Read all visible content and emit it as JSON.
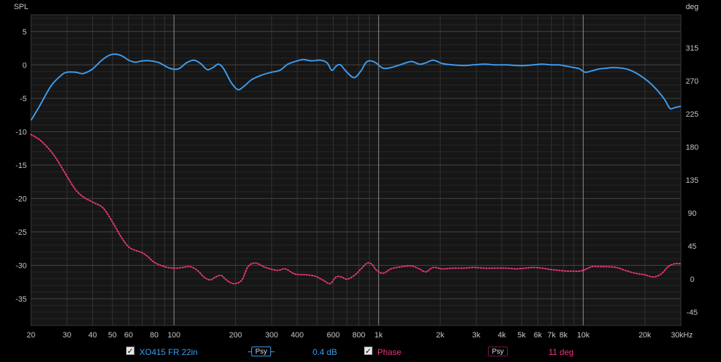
{
  "chart_data": {
    "type": "line",
    "left_axis_label": "SPL",
    "right_axis_label": "deg",
    "x_scale": "log",
    "xlim": [
      20,
      30000
    ],
    "ylim_spl": [
      -39,
      7.5
    ],
    "ylim_phase": [
      -63,
      360
    ],
    "x_ticks": [
      {
        "v": 20,
        "l": "20"
      },
      {
        "v": 30,
        "l": "30"
      },
      {
        "v": 40,
        "l": "40"
      },
      {
        "v": 50,
        "l": "50"
      },
      {
        "v": 60,
        "l": "60"
      },
      {
        "v": 80,
        "l": "80"
      },
      {
        "v": 100,
        "l": "100"
      },
      {
        "v": 200,
        "l": "200"
      },
      {
        "v": 300,
        "l": "300"
      },
      {
        "v": 400,
        "l": "400"
      },
      {
        "v": 600,
        "l": "600"
      },
      {
        "v": 800,
        "l": "800"
      },
      {
        "v": 1000,
        "l": "1k"
      },
      {
        "v": 2000,
        "l": "2k"
      },
      {
        "v": 3000,
        "l": "3k"
      },
      {
        "v": 4000,
        "l": "4k"
      },
      {
        "v": 5000,
        "l": "5k"
      },
      {
        "v": 6000,
        "l": "6k"
      },
      {
        "v": 7000,
        "l": "7k"
      },
      {
        "v": 8000,
        "l": "8k"
      },
      {
        "v": 10000,
        "l": "10k"
      },
      {
        "v": 20000,
        "l": "20k"
      },
      {
        "v": 30000,
        "l": "30kHz"
      }
    ],
    "y_ticks_left": [
      5,
      0,
      -5,
      -10,
      -15,
      -20,
      -25,
      -30,
      -35
    ],
    "y_ticks_right": [
      315,
      270,
      225,
      180,
      135,
      90,
      45,
      0,
      -45
    ],
    "grid": true,
    "series": [
      {
        "name": "XO415 FR 22in",
        "axis": "left",
        "color": "#3d9cf0",
        "style": "solid",
        "points": [
          [
            20,
            -8.3
          ],
          [
            22,
            -6.2
          ],
          [
            25,
            -3.2
          ],
          [
            28,
            -1.6
          ],
          [
            30,
            -1.1
          ],
          [
            33,
            -1.1
          ],
          [
            36,
            -1.3
          ],
          [
            40,
            -0.6
          ],
          [
            44,
            0.6
          ],
          [
            48,
            1.4
          ],
          [
            52,
            1.6
          ],
          [
            56,
            1.3
          ],
          [
            60,
            0.7
          ],
          [
            65,
            0.4
          ],
          [
            70,
            0.6
          ],
          [
            77,
            0.6
          ],
          [
            85,
            0.3
          ],
          [
            95,
            -0.5
          ],
          [
            105,
            -0.6
          ],
          [
            115,
            0.3
          ],
          [
            125,
            0.7
          ],
          [
            135,
            0.2
          ],
          [
            145,
            -0.7
          ],
          [
            155,
            -0.4
          ],
          [
            165,
            0.1
          ],
          [
            175,
            -0.6
          ],
          [
            190,
            -2.6
          ],
          [
            205,
            -3.7
          ],
          [
            220,
            -3.2
          ],
          [
            240,
            -2.2
          ],
          [
            270,
            -1.5
          ],
          [
            300,
            -1.1
          ],
          [
            330,
            -0.8
          ],
          [
            360,
            0.1
          ],
          [
            400,
            0.6
          ],
          [
            430,
            0.8
          ],
          [
            470,
            0.6
          ],
          [
            520,
            0.7
          ],
          [
            560,
            0.3
          ],
          [
            590,
            -0.8
          ],
          [
            620,
            -0.2
          ],
          [
            650,
            0.0
          ],
          [
            700,
            -1.1
          ],
          [
            760,
            -1.9
          ],
          [
            820,
            -0.9
          ],
          [
            870,
            0.4
          ],
          [
            920,
            0.6
          ],
          [
            970,
            0.3
          ],
          [
            1050,
            -0.5
          ],
          [
            1150,
            -0.4
          ],
          [
            1300,
            0.1
          ],
          [
            1450,
            0.5
          ],
          [
            1580,
            0.1
          ],
          [
            1700,
            0.3
          ],
          [
            1850,
            0.7
          ],
          [
            2050,
            0.2
          ],
          [
            2300,
            0.0
          ],
          [
            2600,
            -0.1
          ],
          [
            2900,
            0.0
          ],
          [
            3300,
            0.1
          ],
          [
            3700,
            0.0
          ],
          [
            4200,
            0.0
          ],
          [
            4700,
            -0.1
          ],
          [
            5200,
            -0.1
          ],
          [
            5700,
            0.0
          ],
          [
            6300,
            0.1
          ],
          [
            7000,
            0.0
          ],
          [
            7600,
            0.0
          ],
          [
            8300,
            -0.2
          ],
          [
            9000,
            -0.4
          ],
          [
            9600,
            -0.6
          ],
          [
            10200,
            -1.1
          ],
          [
            11000,
            -0.9
          ],
          [
            12000,
            -0.6
          ],
          [
            13000,
            -0.5
          ],
          [
            14000,
            -0.4
          ],
          [
            15500,
            -0.5
          ],
          [
            17000,
            -0.8
          ],
          [
            19000,
            -1.6
          ],
          [
            21000,
            -2.6
          ],
          [
            23000,
            -3.8
          ],
          [
            25000,
            -5.2
          ],
          [
            26500,
            -6.5
          ],
          [
            28000,
            -6.4
          ],
          [
            30000,
            -6.2
          ]
        ]
      },
      {
        "name": "Phase",
        "axis": "right",
        "color": "#e8357f",
        "style": "dotted",
        "points": [
          [
            20,
            197
          ],
          [
            22,
            190
          ],
          [
            24,
            180
          ],
          [
            26,
            168
          ],
          [
            28,
            154
          ],
          [
            30,
            140
          ],
          [
            33,
            122
          ],
          [
            36,
            112
          ],
          [
            40,
            105
          ],
          [
            45,
            97
          ],
          [
            50,
            78
          ],
          [
            55,
            58
          ],
          [
            60,
            44
          ],
          [
            65,
            39
          ],
          [
            70,
            36
          ],
          [
            75,
            30
          ],
          [
            80,
            23
          ],
          [
            90,
            17
          ],
          [
            100,
            15
          ],
          [
            110,
            16
          ],
          [
            120,
            17
          ],
          [
            130,
            12
          ],
          [
            140,
            3
          ],
          [
            150,
            -1
          ],
          [
            160,
            3
          ],
          [
            170,
            5
          ],
          [
            180,
            -1
          ],
          [
            190,
            -5
          ],
          [
            200,
            -6
          ],
          [
            215,
            -1
          ],
          [
            230,
            17
          ],
          [
            250,
            22
          ],
          [
            280,
            16
          ],
          [
            320,
            12
          ],
          [
            350,
            14
          ],
          [
            390,
            7
          ],
          [
            440,
            6
          ],
          [
            490,
            4
          ],
          [
            540,
            -2
          ],
          [
            580,
            -6
          ],
          [
            620,
            3
          ],
          [
            660,
            3
          ],
          [
            700,
            0
          ],
          [
            760,
            5
          ],
          [
            820,
            14
          ],
          [
            880,
            22
          ],
          [
            930,
            20
          ],
          [
            970,
            13
          ],
          [
            1050,
            8
          ],
          [
            1150,
            14
          ],
          [
            1300,
            17
          ],
          [
            1450,
            18
          ],
          [
            1580,
            14
          ],
          [
            1700,
            10
          ],
          [
            1850,
            16
          ],
          [
            2050,
            14
          ],
          [
            2300,
            15
          ],
          [
            2600,
            15
          ],
          [
            2900,
            16
          ],
          [
            3300,
            15
          ],
          [
            3700,
            15
          ],
          [
            4200,
            15
          ],
          [
            4700,
            14
          ],
          [
            5200,
            15
          ],
          [
            5700,
            16
          ],
          [
            6300,
            15
          ],
          [
            7000,
            13
          ],
          [
            7600,
            12
          ],
          [
            8300,
            11
          ],
          [
            9000,
            11
          ],
          [
            9600,
            11
          ],
          [
            10200,
            13
          ],
          [
            11000,
            17
          ],
          [
            12000,
            17
          ],
          [
            13000,
            17
          ],
          [
            14500,
            16
          ],
          [
            16000,
            12
          ],
          [
            18000,
            8
          ],
          [
            20000,
            6
          ],
          [
            22000,
            3
          ],
          [
            24000,
            7
          ],
          [
            26000,
            17
          ],
          [
            28000,
            21
          ],
          [
            30000,
            21
          ]
        ]
      }
    ]
  },
  "legend": {
    "fr_label": "XO415 FR 22in",
    "fr_smoothing": "Psy",
    "fr_offset": "0.4 dB",
    "phase_label": "Phase",
    "phase_smoothing": "Psy",
    "phase_offset": "11 deg",
    "check_glyph": "✓"
  }
}
